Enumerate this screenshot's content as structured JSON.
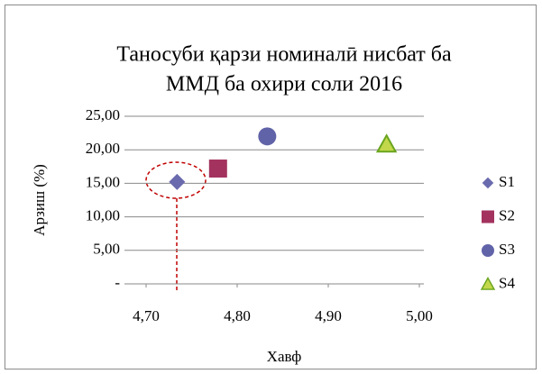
{
  "chart_data": {
    "type": "scatter",
    "title": [
      "Таносуби қарзи номиналӣ нисбат ба",
      "ММД ба охири соли 2016"
    ],
    "x_label": "Хавф",
    "y_label": "Арзиш (%)",
    "xlim": [
      4.7,
      5.0
    ],
    "xticks": [
      {
        "value": 4.7,
        "label": "4,70"
      },
      {
        "value": 4.8,
        "label": "4,80"
      },
      {
        "value": 4.9,
        "label": "4,90"
      },
      {
        "value": 5.0,
        "label": "5,00"
      }
    ],
    "ylim": [
      0,
      25
    ],
    "yticks": [
      {
        "value": 0,
        "label": "-"
      },
      {
        "value": 5,
        "label": "5,00"
      },
      {
        "value": 10,
        "label": "10,00"
      },
      {
        "value": 15,
        "label": "15,00"
      },
      {
        "value": 20,
        "label": "20,00"
      },
      {
        "value": 25,
        "label": "25,00"
      }
    ],
    "grid": true,
    "legend": "right",
    "series": [
      {
        "name": "S1",
        "color": "#6a6aae",
        "marker": "diamond",
        "x": [
          4.734
        ],
        "values": [
          15.2
        ]
      },
      {
        "name": "S2",
        "color": "#a3325e",
        "marker": "square",
        "x": [
          4.779
        ],
        "values": [
          17.2
        ]
      },
      {
        "name": "S3",
        "color": "#6163a8",
        "marker": "circle",
        "x": [
          4.833
        ],
        "values": [
          22.0
        ]
      },
      {
        "name": "S4",
        "color": "#c2d84a",
        "marker": "triangle",
        "x": [
          4.964
        ],
        "values": [
          20.8
        ]
      }
    ]
  }
}
